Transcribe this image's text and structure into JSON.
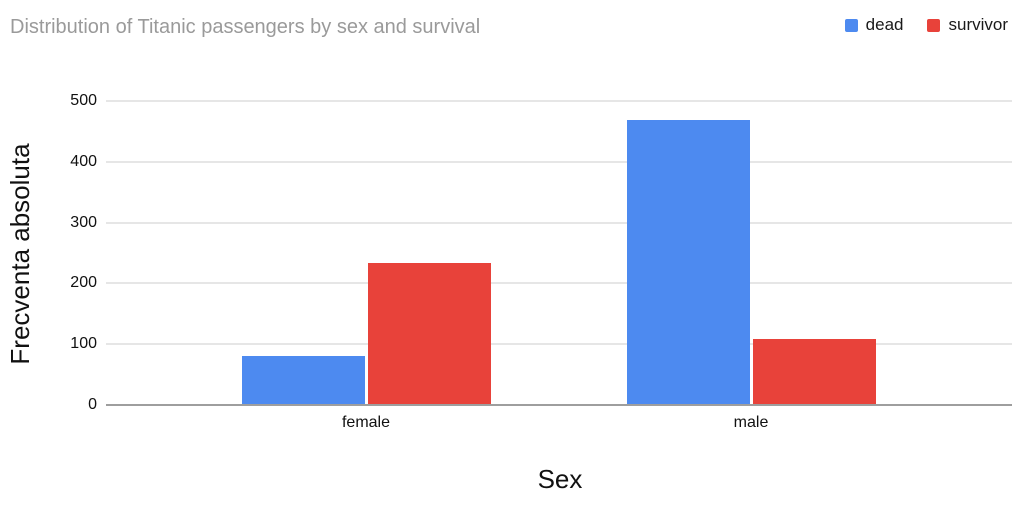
{
  "chart_data": {
    "type": "bar",
    "title": "Distribution of Titanic passengers by sex and survival",
    "categories": [
      "female",
      "male"
    ],
    "series": [
      {
        "name": "dead",
        "color": "#4D8AF0",
        "values": [
          81,
          468
        ]
      },
      {
        "name": "survivor",
        "color": "#E8423A",
        "values": [
          233,
          109
        ]
      }
    ],
    "xlabel": "Sex",
    "ylabel": "Frecventa absoluta",
    "ylim": [
      0,
      500
    ],
    "yticks": [
      0,
      100,
      200,
      300,
      400,
      500
    ],
    "grid": true,
    "legend_position": "top-right"
  },
  "colors": {
    "title_text": "#9A9A9A",
    "axis_text": "#111111",
    "gridline": "#E6E6E6",
    "axis_line": "#9E9E9E",
    "background": "#FFFFFF"
  }
}
